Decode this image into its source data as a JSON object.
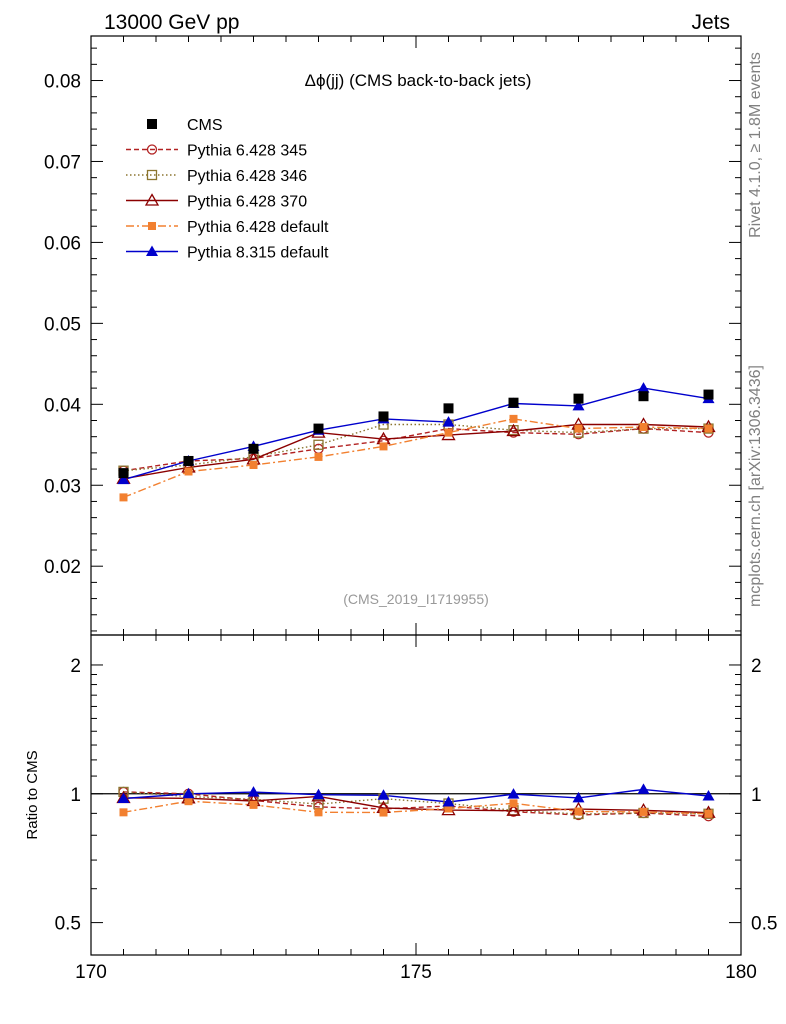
{
  "header": {
    "left_label": "13000 GeV pp",
    "right_label": "Jets"
  },
  "side_labels": {
    "rivet": "Rivet 4.1.0, ≥ 1.8M events",
    "mcplots": "mcplots.cern.ch [arXiv:1306.3436]"
  },
  "chart_data": [
    {
      "type": "line",
      "title": "Δϕ(jj) (CMS back-to-back jets)",
      "watermark": "(CMS_2019_I1719955)",
      "xlabel": "",
      "ylabel": "",
      "xlim": [
        170,
        180
      ],
      "ylim": [
        0.0115,
        0.0855
      ],
      "yticks": [
        0.02,
        0.03,
        0.04,
        0.05,
        0.06,
        0.07,
        0.08
      ],
      "ytick_labels": [
        "0.02",
        "0.03",
        "0.04",
        "0.05",
        "0.06",
        "0.07",
        "0.08"
      ],
      "x": [
        170.5,
        171.5,
        172.5,
        173.5,
        174.5,
        175.5,
        176.5,
        177.5,
        178.5,
        179.5
      ],
      "legend_position": "top-left",
      "series": [
        {
          "name": "CMS",
          "color": "#000000",
          "marker": "square-filled",
          "dash": "none",
          "values": [
            0.0315,
            0.033,
            0.0345,
            0.037,
            0.0385,
            0.0395,
            0.0402,
            0.0407,
            0.041,
            0.0412
          ]
        },
        {
          "name": "Pythia 6.428 345",
          "color": "#b22222",
          "marker": "circle-open",
          "dash": "5,3",
          "values": [
            0.0318,
            0.033,
            0.0333,
            0.0345,
            0.0355,
            0.037,
            0.0365,
            0.0363,
            0.037,
            0.0365
          ]
        },
        {
          "name": "Pythia 6.428 346",
          "color": "#8b7530",
          "marker": "square-open",
          "dash": "1.5,2.5",
          "values": [
            0.0318,
            0.0325,
            0.0335,
            0.035,
            0.0375,
            0.0375,
            0.0368,
            0.0365,
            0.037,
            0.037
          ]
        },
        {
          "name": "Pythia 6.428 370",
          "color": "#8b0000",
          "marker": "triangle-open",
          "dash": "none",
          "values": [
            0.0308,
            0.0322,
            0.0332,
            0.0365,
            0.0357,
            0.0362,
            0.0367,
            0.0375,
            0.0375,
            0.0372
          ]
        },
        {
          "name": "Pythia 6.428 default",
          "color": "#f28030",
          "marker": "square-small",
          "dash": "8,3,2,3",
          "values": [
            0.0285,
            0.0317,
            0.0325,
            0.0335,
            0.0348,
            0.0365,
            0.0382,
            0.037,
            0.0372,
            0.037
          ]
        },
        {
          "name": "Pythia 8.315 default",
          "color": "#0000cc",
          "marker": "triangle-filled",
          "dash": "none",
          "values": [
            0.0307,
            0.033,
            0.0348,
            0.0368,
            0.0382,
            0.0378,
            0.0401,
            0.0398,
            0.042,
            0.0407
          ]
        }
      ]
    },
    {
      "type": "line",
      "title": "",
      "xlabel": "",
      "ylabel": "Ratio to CMS",
      "xlim": [
        170,
        180
      ],
      "ylim": [
        0.42,
        2.35
      ],
      "yscale": "log",
      "yticks": [
        0.5,
        1,
        2
      ],
      "ytick_labels": [
        "0.5",
        "1",
        "2"
      ],
      "xticks": [
        170,
        175,
        180
      ],
      "xtick_labels": [
        "170",
        "175",
        "180"
      ],
      "x": [
        170.5,
        171.5,
        172.5,
        173.5,
        174.5,
        175.5,
        176.5,
        177.5,
        178.5,
        179.5
      ],
      "series": [
        {
          "name": "Pythia 6.428 345",
          "values": [
            1.01,
            1.0,
            0.965,
            0.932,
            0.922,
            0.937,
            0.908,
            0.892,
            0.902,
            0.886
          ]
        },
        {
          "name": "Pythia 6.428 346",
          "values": [
            1.01,
            0.985,
            0.971,
            0.946,
            0.974,
            0.949,
            0.915,
            0.897,
            0.902,
            0.898
          ]
        },
        {
          "name": "Pythia 6.428 370",
          "values": [
            0.978,
            0.976,
            0.962,
            0.986,
            0.927,
            0.916,
            0.913,
            0.921,
            0.915,
            0.903
          ]
        },
        {
          "name": "Pythia 6.428 default",
          "values": [
            0.905,
            0.961,
            0.942,
            0.905,
            0.904,
            0.924,
            0.95,
            0.909,
            0.907,
            0.898
          ]
        },
        {
          "name": "Pythia 8.315 default",
          "values": [
            0.975,
            1.0,
            1.009,
            0.995,
            0.992,
            0.957,
            0.998,
            0.978,
            1.024,
            0.988
          ]
        }
      ]
    }
  ]
}
